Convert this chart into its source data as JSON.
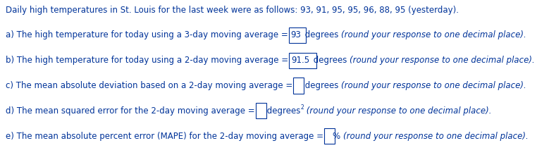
{
  "title": "Daily high temperatures in St. Louis for the last week were as follows: 93, 91, 95, 95, 96, 88, 95 (yesterday).",
  "lines": [
    {
      "parts": [
        {
          "text": "a) The high temperature for today using a 3-day moving average = ",
          "style": "normal"
        },
        {
          "text": "93",
          "style": "box"
        },
        {
          "text": " degrees ",
          "style": "normal"
        },
        {
          "text": "(round your response to one decimal place).",
          "style": "italic"
        }
      ]
    },
    {
      "parts": [
        {
          "text": "b) The high temperature for today using a 2-day moving average = ",
          "style": "normal"
        },
        {
          "text": "91.5",
          "style": "box"
        },
        {
          "text": " degrees ",
          "style": "normal"
        },
        {
          "text": "(round your response to one decimal place).",
          "style": "italic"
        }
      ]
    },
    {
      "parts": [
        {
          "text": "c) The mean absolute deviation based on a 2-day moving average = ",
          "style": "normal"
        },
        {
          "text": "  ",
          "style": "box"
        },
        {
          "text": " degrees ",
          "style": "normal"
        },
        {
          "text": "(round your response to one decimal place).",
          "style": "italic"
        }
      ]
    },
    {
      "parts": [
        {
          "text": "d) The mean squared error for the 2-day moving average = ",
          "style": "normal"
        },
        {
          "text": "  ",
          "style": "box"
        },
        {
          "text": " degrees",
          "style": "normal"
        },
        {
          "text": "2",
          "style": "super"
        },
        {
          "text": " (round your response to one decimal place).",
          "style": "italic"
        }
      ]
    },
    {
      "parts": [
        {
          "text": "e) The mean absolute percent error (MAPE) for the 2-day moving average = ",
          "style": "normal"
        },
        {
          "text": "  ",
          "style": "box"
        },
        {
          "text": "% ",
          "style": "normal"
        },
        {
          "text": "(round your response to one decimal place).",
          "style": "italic"
        }
      ]
    }
  ],
  "text_color": "#003399",
  "bg_color": "#ffffff",
  "font_size": 8.5,
  "fig_width": 7.62,
  "fig_height": 2.37,
  "dpi": 100
}
